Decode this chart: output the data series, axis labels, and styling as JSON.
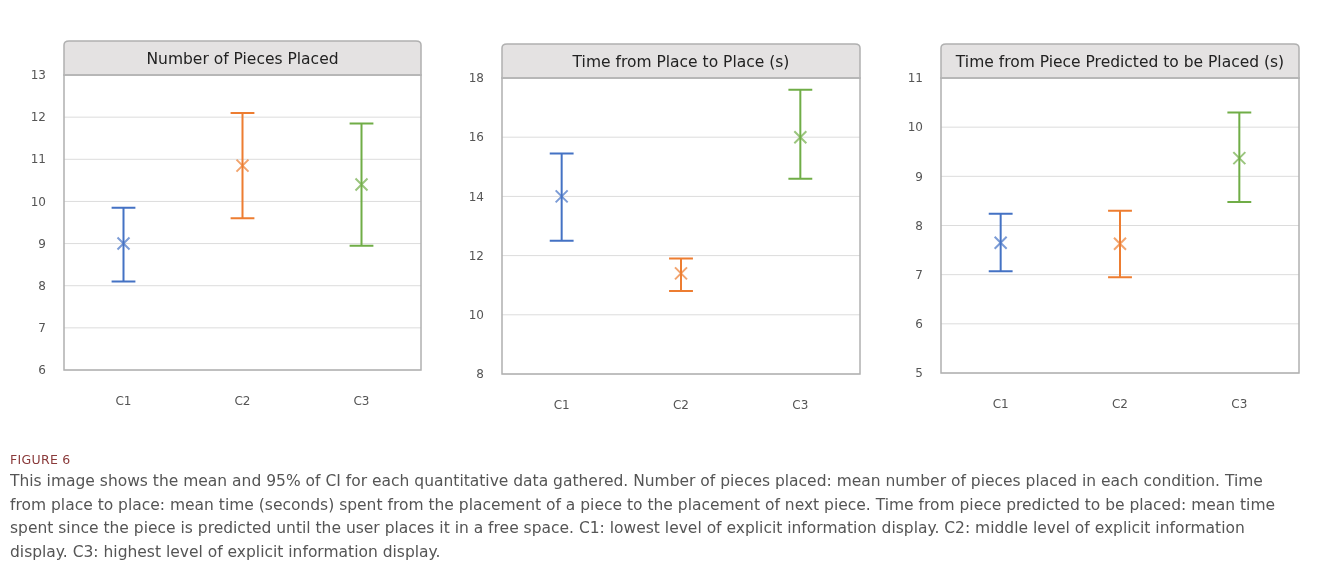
{
  "chart_data": [
    {
      "type": "scatter",
      "title": "Number of Pieces Placed",
      "categories": [
        "C1",
        "C2",
        "C3"
      ],
      "values": [
        9.0,
        10.85,
        10.4
      ],
      "colors": [
        "#4472c4",
        "#ed7d31",
        "#70ad47"
      ],
      "errors": [
        [
          8.1,
          9.85
        ],
        [
          9.6,
          12.1
        ],
        [
          8.95,
          11.85
        ]
      ],
      "ylim": [
        6,
        13
      ],
      "yticks": [
        6,
        7,
        8,
        9,
        10,
        11,
        12,
        13
      ],
      "grid": "y",
      "marker": "cross"
    },
    {
      "type": "scatter",
      "title": "Time from Place to Place (s)",
      "categories": [
        "C1",
        "C2",
        "C3"
      ],
      "values": [
        14.0,
        11.4,
        16.0
      ],
      "colors": [
        "#4472c4",
        "#ed7d31",
        "#70ad47"
      ],
      "errors": [
        [
          12.5,
          15.45
        ],
        [
          10.8,
          11.9
        ],
        [
          14.6,
          17.6
        ]
      ],
      "ylim": [
        8,
        18
      ],
      "yticks": [
        8,
        10,
        12,
        14,
        16,
        18
      ],
      "grid": "y",
      "marker": "cross"
    },
    {
      "type": "scatter",
      "title": "Time from Piece Predicted to be Placed (s)",
      "categories": [
        "C1",
        "C2",
        "C3"
      ],
      "values": [
        7.65,
        7.63,
        9.37
      ],
      "colors": [
        "#4472c4",
        "#ed7d31",
        "#70ad47"
      ],
      "errors": [
        [
          7.07,
          8.24
        ],
        [
          6.95,
          8.3
        ],
        [
          8.48,
          10.3
        ]
      ],
      "ylim": [
        5,
        11
      ],
      "yticks": [
        5,
        6,
        7,
        8,
        9,
        10,
        11
      ],
      "grid": "y",
      "marker": "cross",
      "annotations": [
        "FIGURE 6",
        "This image shows the mean and 95% of CI for each quantitative data gathered. Number of pieces placed: mean number of pieces placed in each condition. Time from place to place: mean time (seconds) spent from the placement of a piece to the placement of next piece. Time from piece predicted to be placed: mean time spent since the piece is predicted until the user places it in a free space. C1: lowest level of explicit information display. C2: middle level of explicit information display. C3: highest level of explicit information display."
      ]
    }
  ]
}
